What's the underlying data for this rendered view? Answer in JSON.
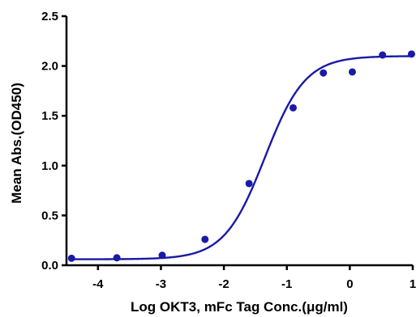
{
  "chart_data": {
    "type": "scatter",
    "title": "",
    "xlabel": "Log OKT3, mFc Tag Conc.(μg/ml)",
    "ylabel": "Mean Abs.(OD450)",
    "xlim": [
      -4.5,
      1
    ],
    "ylim": [
      0,
      2.5
    ],
    "x_ticks": [
      "-4",
      "-3",
      "-2",
      "-1",
      "0",
      "1"
    ],
    "y_ticks": [
      "0.0",
      "0.5",
      "1.0",
      "1.5",
      "2.0",
      "2.5"
    ],
    "grid": false,
    "legend": "none",
    "color": "#1a1aa6",
    "series": [
      {
        "points": [
          {
            "x": -4.42,
            "y": 0.07
          },
          {
            "x": -3.7,
            "y": 0.075
          },
          {
            "x": -2.98,
            "y": 0.1
          },
          {
            "x": -2.3,
            "y": 0.26
          },
          {
            "x": -1.6,
            "y": 0.82
          },
          {
            "x": -0.9,
            "y": 1.58
          },
          {
            "x": -0.42,
            "y": 1.93
          },
          {
            "x": 0.04,
            "y": 1.94
          },
          {
            "x": 0.52,
            "y": 2.11
          },
          {
            "x": 0.98,
            "y": 2.12
          }
        ],
        "fit": {
          "model": "4PL",
          "bottom": 0.06,
          "top": 2.1,
          "logEC50": -1.35,
          "hill": 1.35
        }
      }
    ]
  }
}
